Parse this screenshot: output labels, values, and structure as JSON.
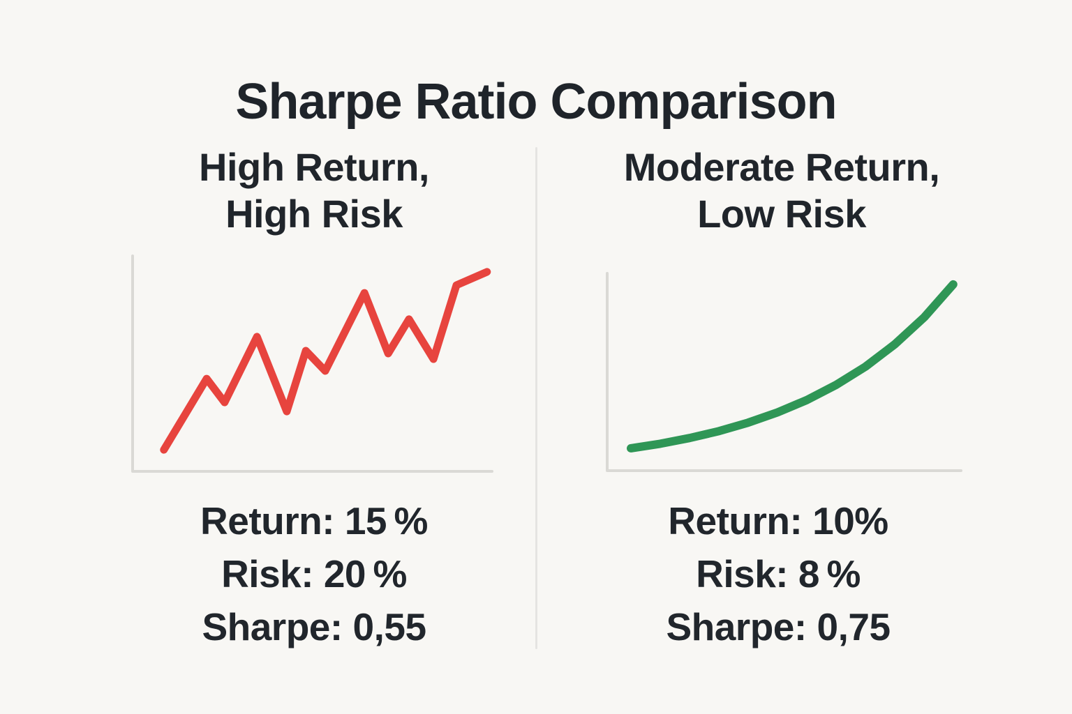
{
  "title": "Sharpe Ratio Comparison",
  "colors": {
    "background": "#F8F7F4",
    "text": "#21262C",
    "axis": "#DAD9D5",
    "divider": "#E5E4E2",
    "high_risk_line": "#E7443E",
    "low_risk_line": "#2F9656"
  },
  "panels": [
    {
      "heading_line1": "High Return,",
      "heading_line2": "High Risk",
      "stats": [
        "Return:  15 %",
        "Risk: 20 %",
        "Sharpe: 0,55"
      ]
    },
    {
      "heading_line1": "Moderate Return,",
      "heading_line2": "Low Risk",
      "stats": [
        "Return: 10%",
        "Risk: 8 %",
        "Sharpe: 0,75"
      ]
    }
  ],
  "chart_data": [
    {
      "type": "line",
      "title": "High Return, High Risk",
      "color": "#E7443E",
      "style": "jagged",
      "x": [
        8.7,
        20.6,
        25.6,
        34.6,
        42.9,
        48.2,
        53.6,
        64.5,
        71.1,
        76.9,
        83.7,
        90.1,
        98.6
      ],
      "values": [
        10.0,
        43.0,
        32.0,
        62.5,
        27.8,
        56.0,
        46.6,
        82.8,
        54.7,
        70.6,
        52.1,
        86.4,
        92.6
      ],
      "xlabel": "",
      "ylabel": "",
      "x_range": [
        0,
        100
      ],
      "y_range": [
        0,
        100
      ],
      "grid": false,
      "legend": "none",
      "ticks": "none",
      "stats": {
        "return_pct": 15,
        "risk_pct": 20,
        "sharpe": 0.55
      }
    },
    {
      "type": "line",
      "title": "Moderate Return, Low Risk",
      "color": "#2F9656",
      "style": "smooth-exponential",
      "x": [
        6.7,
        15.0,
        23.3,
        31.6,
        39.8,
        48.1,
        56.4,
        64.7,
        73.0,
        81.3,
        89.6,
        97.8
      ],
      "values": [
        11.4,
        13.7,
        16.6,
        20.1,
        24.4,
        29.6,
        35.9,
        43.6,
        52.9,
        64.3,
        78.0,
        94.7
      ],
      "xlabel": "",
      "ylabel": "",
      "x_range": [
        0,
        100
      ],
      "y_range": [
        0,
        100
      ],
      "grid": false,
      "legend": "none",
      "ticks": "none",
      "stats": {
        "return_pct": 10,
        "risk_pct": 8,
        "sharpe": 0.75
      }
    }
  ]
}
